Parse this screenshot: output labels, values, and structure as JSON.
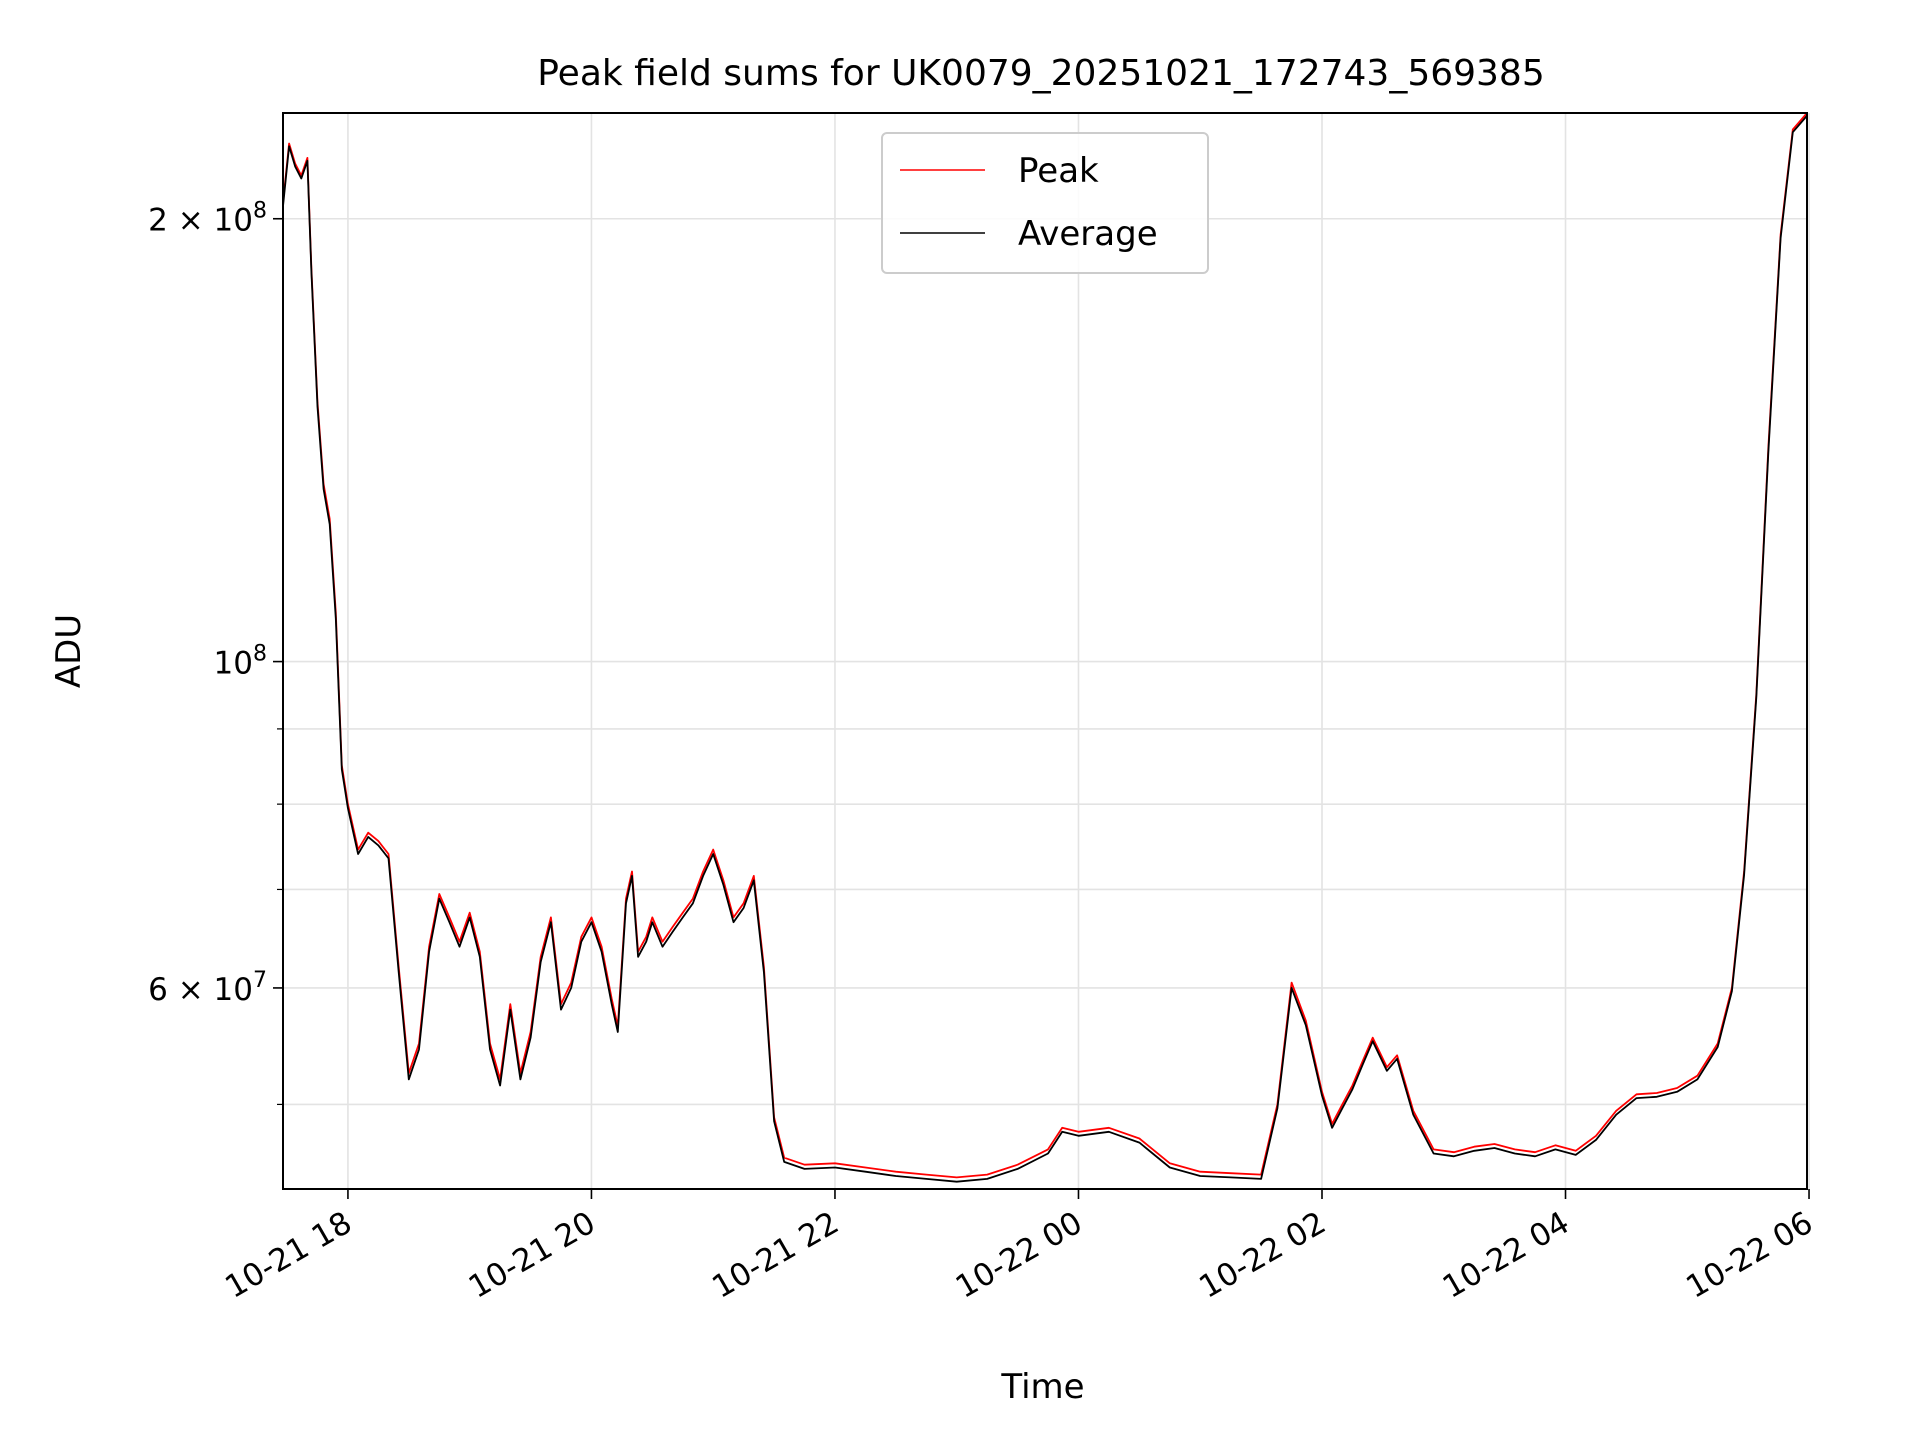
{
  "chart_data": {
    "type": "line",
    "title": "Peak field sums for UK0079_20251021_172743_569385",
    "xlabel": "Time",
    "ylabel": "ADU",
    "y_scale": "log",
    "ylim": [
      43800000,
      236000000
    ],
    "xlim": [
      "2025-10-21 17:28",
      "2025-10-22 05:59"
    ],
    "x_ticks": [
      {
        "time": "2025-10-21 18:00",
        "label": "10-21 18"
      },
      {
        "time": "2025-10-21 20:00",
        "label": "10-21 20"
      },
      {
        "time": "2025-10-21 22:00",
        "label": "10-21 22"
      },
      {
        "time": "2025-10-22 00:00",
        "label": "10-22 00"
      },
      {
        "time": "2025-10-22 02:00",
        "label": "10-22 02"
      },
      {
        "time": "2025-10-22 04:00",
        "label": "10-22 04"
      },
      {
        "time": "2025-10-22 06:00",
        "label": "10-22 06"
      }
    ],
    "y_ticks": [
      {
        "value": 200000000,
        "base": "2 × 10",
        "exp": "8"
      },
      {
        "value": 100000000,
        "base": "10",
        "exp": "8"
      },
      {
        "value": 60000000,
        "base": "6 × 10",
        "exp": "7"
      }
    ],
    "y_minor_ticks": [
      50000000,
      70000000,
      80000000,
      90000000
    ],
    "grid": true,
    "legend": "top-center",
    "series": [
      {
        "name": "Peak",
        "color": "#ff0000",
        "points": [
          [
            "2025-10-21 17:28",
            205000000
          ],
          [
            "2025-10-21 17:31",
            225000000
          ],
          [
            "2025-10-21 17:34",
            218000000
          ],
          [
            "2025-10-21 17:37",
            214000000
          ],
          [
            "2025-10-21 17:40",
            220000000
          ],
          [
            "2025-10-21 17:42",
            185000000
          ],
          [
            "2025-10-21 17:45",
            150000000
          ],
          [
            "2025-10-21 17:48",
            132000000
          ],
          [
            "2025-10-21 17:51",
            125000000
          ],
          [
            "2025-10-21 17:54",
            108000000
          ],
          [
            "2025-10-21 17:57",
            85000000
          ],
          [
            "2025-10-21 18:00",
            80000000
          ],
          [
            "2025-10-21 18:05",
            74500000
          ],
          [
            "2025-10-21 18:10",
            76500000
          ],
          [
            "2025-10-21 18:15",
            75500000
          ],
          [
            "2025-10-21 18:20",
            74000000
          ],
          [
            "2025-10-21 18:25",
            62000000
          ],
          [
            "2025-10-21 18:30",
            52500000
          ],
          [
            "2025-10-21 18:35",
            55000000
          ],
          [
            "2025-10-21 18:40",
            64000000
          ],
          [
            "2025-10-21 18:45",
            69500000
          ],
          [
            "2025-10-21 18:50",
            67000000
          ],
          [
            "2025-10-21 18:55",
            64500000
          ],
          [
            "2025-10-21 19:00",
            67500000
          ],
          [
            "2025-10-21 19:05",
            63500000
          ],
          [
            "2025-10-21 19:10",
            55000000
          ],
          [
            "2025-10-21 19:15",
            52000000
          ],
          [
            "2025-10-21 19:20",
            58500000
          ],
          [
            "2025-10-21 19:25",
            52500000
          ],
          [
            "2025-10-21 19:30",
            56000000
          ],
          [
            "2025-10-21 19:35",
            63000000
          ],
          [
            "2025-10-21 19:40",
            67000000
          ],
          [
            "2025-10-21 19:45",
            58500000
          ],
          [
            "2025-10-21 19:50",
            60500000
          ],
          [
            "2025-10-21 19:55",
            65000000
          ],
          [
            "2025-10-21 20:00",
            67000000
          ],
          [
            "2025-10-21 20:05",
            64000000
          ],
          [
            "2025-10-21 20:10",
            59000000
          ],
          [
            "2025-10-21 20:13",
            56500000
          ],
          [
            "2025-10-21 20:17",
            69000000
          ],
          [
            "2025-10-21 20:20",
            72000000
          ],
          [
            "2025-10-21 20:23",
            63500000
          ],
          [
            "2025-10-21 20:27",
            65000000
          ],
          [
            "2025-10-21 20:30",
            67000000
          ],
          [
            "2025-10-21 20:35",
            64500000
          ],
          [
            "2025-10-21 20:40",
            66000000
          ],
          [
            "2025-10-21 20:45",
            67500000
          ],
          [
            "2025-10-21 20:50",
            69000000
          ],
          [
            "2025-10-21 20:55",
            72000000
          ],
          [
            "2025-10-21 21:00",
            74500000
          ],
          [
            "2025-10-21 21:05",
            71000000
          ],
          [
            "2025-10-21 21:10",
            67000000
          ],
          [
            "2025-10-21 21:15",
            68500000
          ],
          [
            "2025-10-21 21:20",
            71500000
          ],
          [
            "2025-10-21 21:25",
            62000000
          ],
          [
            "2025-10-21 21:30",
            49000000
          ],
          [
            "2025-10-21 21:35",
            46000000
          ],
          [
            "2025-10-21 21:45",
            45500000
          ],
          [
            "2025-10-21 22:00",
            45600000
          ],
          [
            "2025-10-21 22:15",
            45300000
          ],
          [
            "2025-10-21 22:30",
            45000000
          ],
          [
            "2025-10-21 22:45",
            44800000
          ],
          [
            "2025-10-21 23:00",
            44600000
          ],
          [
            "2025-10-21 23:15",
            44800000
          ],
          [
            "2025-10-21 23:30",
            45500000
          ],
          [
            "2025-10-21 23:45",
            46600000
          ],
          [
            "2025-10-21 23:52",
            48200000
          ],
          [
            "2025-10-22 00:00",
            47900000
          ],
          [
            "2025-10-22 00:15",
            48200000
          ],
          [
            "2025-10-22 00:30",
            47400000
          ],
          [
            "2025-10-22 00:45",
            45600000
          ],
          [
            "2025-10-22 01:00",
            45000000
          ],
          [
            "2025-10-22 01:15",
            44900000
          ],
          [
            "2025-10-22 01:30",
            44800000
          ],
          [
            "2025-10-22 01:38",
            50000000
          ],
          [
            "2025-10-22 01:45",
            60500000
          ],
          [
            "2025-10-22 01:52",
            57000000
          ],
          [
            "2025-10-22 02:00",
            51000000
          ],
          [
            "2025-10-22 02:05",
            48500000
          ],
          [
            "2025-10-22 02:10",
            50000000
          ],
          [
            "2025-10-22 02:15",
            51500000
          ],
          [
            "2025-10-22 02:20",
            53500000
          ],
          [
            "2025-10-22 02:25",
            55500000
          ],
          [
            "2025-10-22 02:32",
            53000000
          ],
          [
            "2025-10-22 02:37",
            54000000
          ],
          [
            "2025-10-22 02:45",
            49500000
          ],
          [
            "2025-10-22 02:55",
            46600000
          ],
          [
            "2025-10-22 03:05",
            46400000
          ],
          [
            "2025-10-22 03:15",
            46800000
          ],
          [
            "2025-10-22 03:25",
            47000000
          ],
          [
            "2025-10-22 03:35",
            46600000
          ],
          [
            "2025-10-22 03:45",
            46400000
          ],
          [
            "2025-10-22 03:55",
            46900000
          ],
          [
            "2025-10-22 04:05",
            46500000
          ],
          [
            "2025-10-22 04:15",
            47600000
          ],
          [
            "2025-10-22 04:25",
            49500000
          ],
          [
            "2025-10-22 04:35",
            50800000
          ],
          [
            "2025-10-22 04:45",
            50900000
          ],
          [
            "2025-10-22 04:55",
            51300000
          ],
          [
            "2025-10-22 05:05",
            52300000
          ],
          [
            "2025-10-22 05:15",
            55000000
          ],
          [
            "2025-10-22 05:22",
            60000000
          ],
          [
            "2025-10-22 05:28",
            72000000
          ],
          [
            "2025-10-22 05:34",
            95000000
          ],
          [
            "2025-10-22 05:40",
            140000000
          ],
          [
            "2025-10-22 05:46",
            195000000
          ],
          [
            "2025-10-22 05:52",
            230000000
          ],
          [
            "2025-10-22 05:59",
            236000000
          ]
        ]
      },
      {
        "name": "Average",
        "color": "#000000",
        "points": [
          [
            "2025-10-21 17:28",
            204000000
          ],
          [
            "2025-10-21 17:31",
            224000000
          ],
          [
            "2025-10-21 17:34",
            217000000
          ],
          [
            "2025-10-21 17:37",
            213000000
          ],
          [
            "2025-10-21 17:40",
            219000000
          ],
          [
            "2025-10-21 17:42",
            184000000
          ],
          [
            "2025-10-21 17:45",
            149000000
          ],
          [
            "2025-10-21 17:48",
            131000000
          ],
          [
            "2025-10-21 17:51",
            124000000
          ],
          [
            "2025-10-21 17:54",
            107000000
          ],
          [
            "2025-10-21 17:57",
            84500000
          ],
          [
            "2025-10-21 18:00",
            79500000
          ],
          [
            "2025-10-21 18:05",
            74000000
          ],
          [
            "2025-10-21 18:10",
            76000000
          ],
          [
            "2025-10-21 18:15",
            75000000
          ],
          [
            "2025-10-21 18:20",
            73500000
          ],
          [
            "2025-10-21 18:25",
            61500000
          ],
          [
            "2025-10-21 18:30",
            52000000
          ],
          [
            "2025-10-21 18:35",
            54500000
          ],
          [
            "2025-10-21 18:40",
            63500000
          ],
          [
            "2025-10-21 18:45",
            69000000
          ],
          [
            "2025-10-21 18:50",
            66500000
          ],
          [
            "2025-10-21 18:55",
            64000000
          ],
          [
            "2025-10-21 19:00",
            67000000
          ],
          [
            "2025-10-21 19:05",
            63000000
          ],
          [
            "2025-10-21 19:10",
            54500000
          ],
          [
            "2025-10-21 19:15",
            51500000
          ],
          [
            "2025-10-21 19:20",
            58000000
          ],
          [
            "2025-10-21 19:25",
            52000000
          ],
          [
            "2025-10-21 19:30",
            55500000
          ],
          [
            "2025-10-21 19:35",
            62500000
          ],
          [
            "2025-10-21 19:40",
            66500000
          ],
          [
            "2025-10-21 19:45",
            58000000
          ],
          [
            "2025-10-21 19:50",
            60000000
          ],
          [
            "2025-10-21 19:55",
            64500000
          ],
          [
            "2025-10-21 20:00",
            66500000
          ],
          [
            "2025-10-21 20:05",
            63500000
          ],
          [
            "2025-10-21 20:10",
            58500000
          ],
          [
            "2025-10-21 20:13",
            56000000
          ],
          [
            "2025-10-21 20:17",
            68500000
          ],
          [
            "2025-10-21 20:20",
            71500000
          ],
          [
            "2025-10-21 20:23",
            63000000
          ],
          [
            "2025-10-21 20:27",
            64500000
          ],
          [
            "2025-10-21 20:30",
            66500000
          ],
          [
            "2025-10-21 20:35",
            64000000
          ],
          [
            "2025-10-21 20:40",
            65500000
          ],
          [
            "2025-10-21 20:45",
            67000000
          ],
          [
            "2025-10-21 20:50",
            68500000
          ],
          [
            "2025-10-21 20:55",
            71500000
          ],
          [
            "2025-10-21 21:00",
            74000000
          ],
          [
            "2025-10-21 21:05",
            70500000
          ],
          [
            "2025-10-21 21:10",
            66500000
          ],
          [
            "2025-10-21 21:15",
            68000000
          ],
          [
            "2025-10-21 21:20",
            71000000
          ],
          [
            "2025-10-21 21:25",
            61500000
          ],
          [
            "2025-10-21 21:30",
            48700000
          ],
          [
            "2025-10-21 21:35",
            45700000
          ],
          [
            "2025-10-21 21:45",
            45200000
          ],
          [
            "2025-10-21 22:00",
            45300000
          ],
          [
            "2025-10-21 22:15",
            45000000
          ],
          [
            "2025-10-21 22:30",
            44700000
          ],
          [
            "2025-10-21 22:45",
            44500000
          ],
          [
            "2025-10-21 23:00",
            44300000
          ],
          [
            "2025-10-21 23:15",
            44500000
          ],
          [
            "2025-10-21 23:30",
            45200000
          ],
          [
            "2025-10-21 23:45",
            46300000
          ],
          [
            "2025-10-21 23:52",
            47900000
          ],
          [
            "2025-10-22 00:00",
            47600000
          ],
          [
            "2025-10-22 00:15",
            47900000
          ],
          [
            "2025-10-22 00:30",
            47100000
          ],
          [
            "2025-10-22 00:45",
            45300000
          ],
          [
            "2025-10-22 01:00",
            44700000
          ],
          [
            "2025-10-22 01:15",
            44600000
          ],
          [
            "2025-10-22 01:30",
            44500000
          ],
          [
            "2025-10-22 01:38",
            49700000
          ],
          [
            "2025-10-22 01:45",
            60000000
          ],
          [
            "2025-10-22 01:52",
            56600000
          ],
          [
            "2025-10-22 02:00",
            50700000
          ],
          [
            "2025-10-22 02:05",
            48200000
          ],
          [
            "2025-10-22 02:10",
            49700000
          ],
          [
            "2025-10-22 02:15",
            51200000
          ],
          [
            "2025-10-22 02:20",
            53200000
          ],
          [
            "2025-10-22 02:25",
            55200000
          ],
          [
            "2025-10-22 02:32",
            52700000
          ],
          [
            "2025-10-22 02:37",
            53700000
          ],
          [
            "2025-10-22 02:45",
            49200000
          ],
          [
            "2025-10-22 02:55",
            46300000
          ],
          [
            "2025-10-22 03:05",
            46100000
          ],
          [
            "2025-10-22 03:15",
            46500000
          ],
          [
            "2025-10-22 03:25",
            46700000
          ],
          [
            "2025-10-22 03:35",
            46300000
          ],
          [
            "2025-10-22 03:45",
            46100000
          ],
          [
            "2025-10-22 03:55",
            46600000
          ],
          [
            "2025-10-22 04:05",
            46200000
          ],
          [
            "2025-10-22 04:15",
            47300000
          ],
          [
            "2025-10-22 04:25",
            49200000
          ],
          [
            "2025-10-22 04:35",
            50500000
          ],
          [
            "2025-10-22 04:45",
            50600000
          ],
          [
            "2025-10-22 04:55",
            51000000
          ],
          [
            "2025-10-22 05:05",
            52000000
          ],
          [
            "2025-10-22 05:15",
            54700000
          ],
          [
            "2025-10-22 05:22",
            59700000
          ],
          [
            "2025-10-22 05:28",
            71600000
          ],
          [
            "2025-10-22 05:34",
            94500000
          ],
          [
            "2025-10-22 05:40",
            139000000
          ],
          [
            "2025-10-22 05:46",
            194000000
          ],
          [
            "2025-10-22 05:52",
            229000000
          ],
          [
            "2025-10-22 05:59",
            235000000
          ]
        ]
      }
    ]
  }
}
